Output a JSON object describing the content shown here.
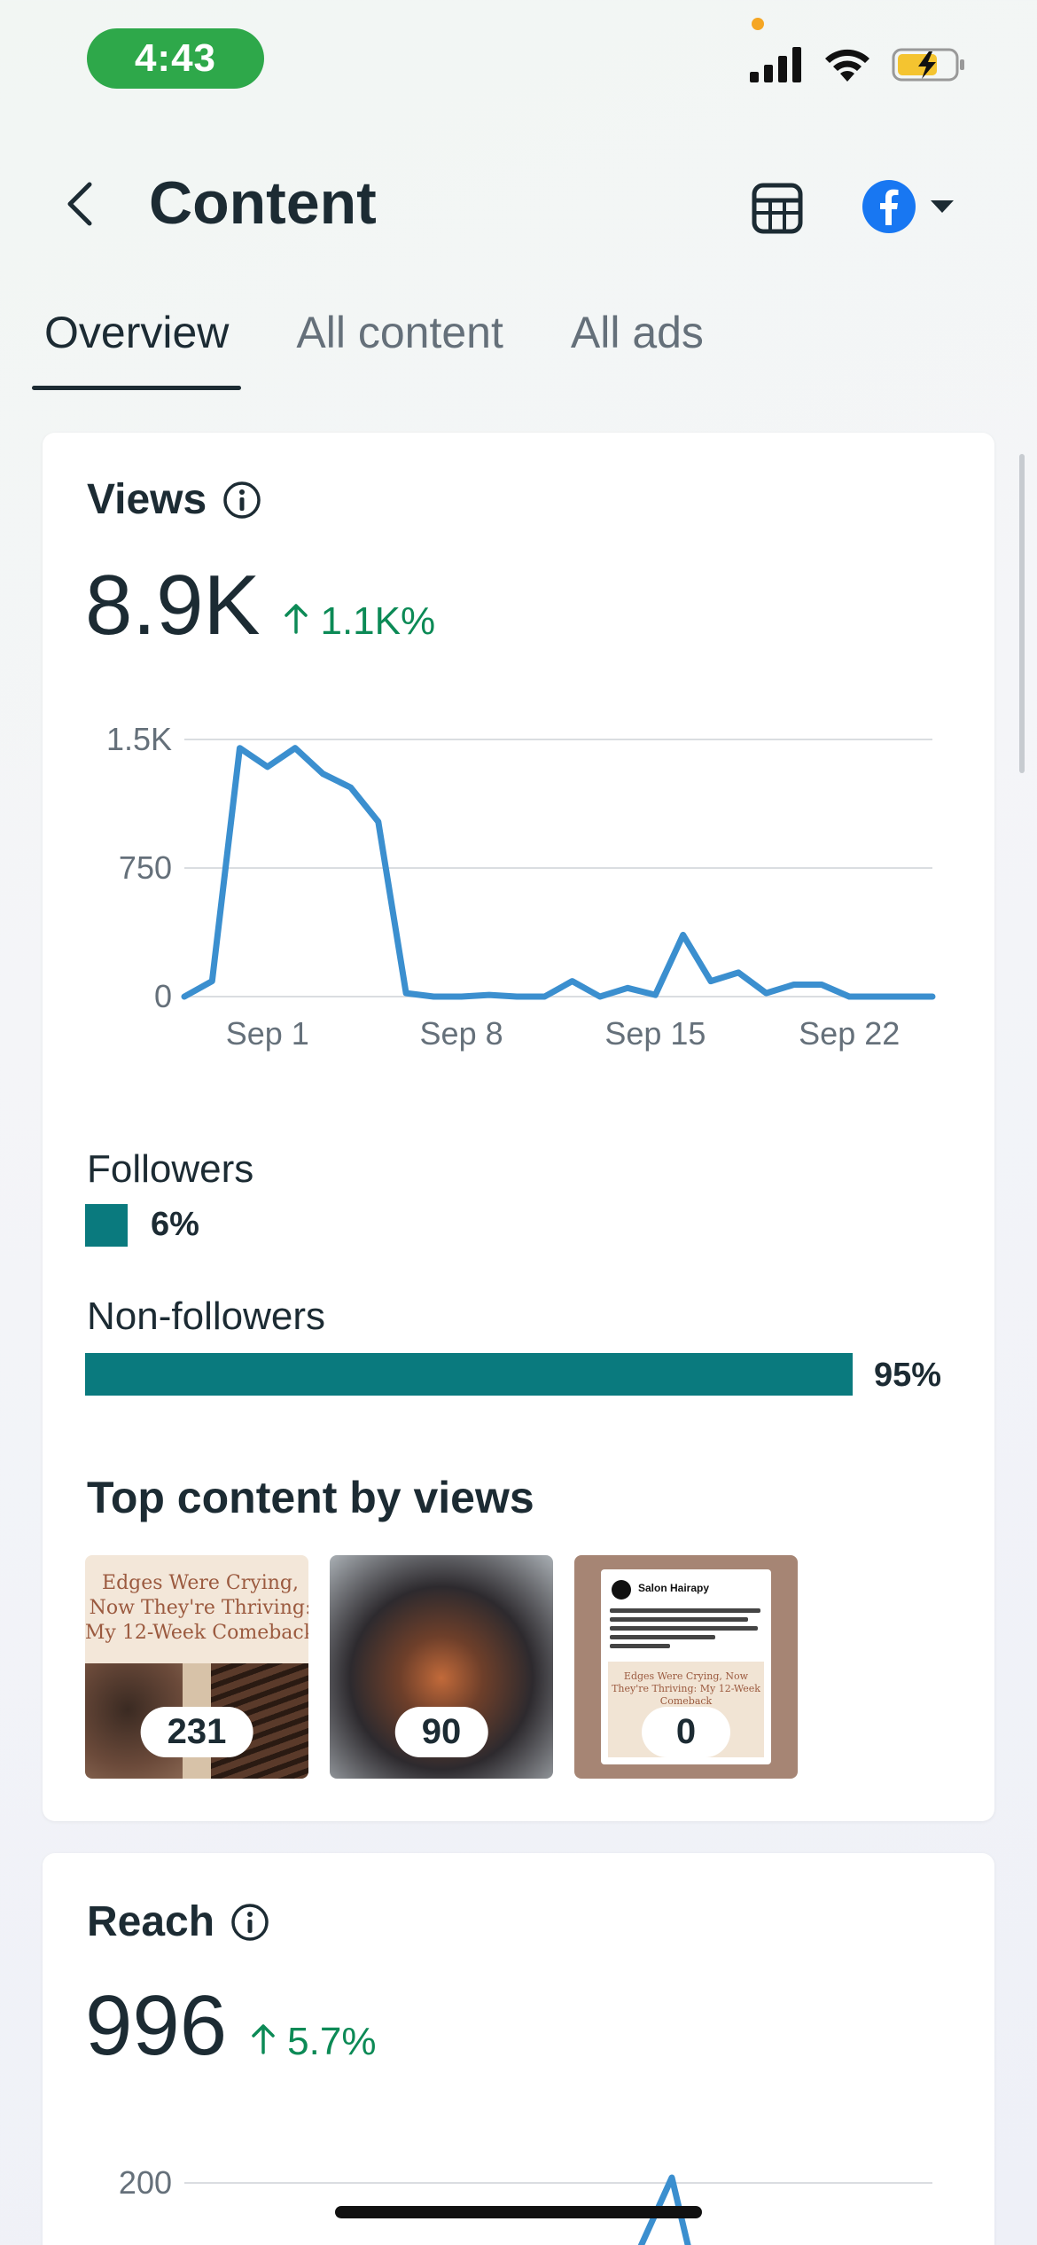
{
  "status_bar": {
    "time": "4:43"
  },
  "header": {
    "title": "Content"
  },
  "tabs": [
    {
      "label": "Overview"
    },
    {
      "label": "All content"
    },
    {
      "label": "All ads"
    }
  ],
  "views": {
    "title": "Views",
    "value": "8.9K",
    "change": "1.1K%",
    "chart_y_ticks": [
      "1.5K",
      "750",
      "0"
    ],
    "chart_x_ticks": [
      "Sep 1",
      "Sep 8",
      "Sep 15",
      "Sep 22"
    ],
    "followers_label": "Followers",
    "followers_pct": "6%",
    "followers_value": 6,
    "nonfollowers_label": "Non-followers",
    "nonfollowers_pct": "95%",
    "nonfollowers_value": 95,
    "top_content_title": "Top content by views",
    "top_content": [
      {
        "count": "231",
        "caption": "Edges Were Crying, Now They're Thriving: My 12-Week Comeback"
      },
      {
        "count": "90"
      },
      {
        "count": "0",
        "account": "Salon Hairapy",
        "caption": "Edges Were Crying, Now They're Thriving: My 12-Week Comeback"
      }
    ]
  },
  "reach": {
    "title": "Reach",
    "value": "996",
    "change": "5.7%",
    "chart_y_ticks": [
      "200"
    ]
  },
  "colors": {
    "accent": "#0a7a7e",
    "line": "#3b8fcf",
    "positive": "#0c8a56"
  },
  "chart_data": {
    "type": "line",
    "title": "Views",
    "x": [
      "Aug 29",
      "Aug 30",
      "Aug 31",
      "Sep 1",
      "Sep 2",
      "Sep 3",
      "Sep 4",
      "Sep 5",
      "Sep 6",
      "Sep 7",
      "Sep 8",
      "Sep 9",
      "Sep 10",
      "Sep 11",
      "Sep 12",
      "Sep 13",
      "Sep 14",
      "Sep 15",
      "Sep 16",
      "Sep 17",
      "Sep 18",
      "Sep 19",
      "Sep 20",
      "Sep 21",
      "Sep 22",
      "Sep 23",
      "Sep 24",
      "Sep 25"
    ],
    "values": [
      0,
      90,
      1450,
      1340,
      1450,
      1300,
      1220,
      1020,
      20,
      0,
      0,
      10,
      0,
      0,
      90,
      0,
      50,
      10,
      360,
      90,
      140,
      20,
      70,
      70,
      0,
      0,
      0,
      0
    ],
    "x_tick_labels": [
      "Sep 1",
      "Sep 8",
      "Sep 15",
      "Sep 22"
    ],
    "y_tick_labels": [
      "1.5K",
      "750",
      "0"
    ],
    "ylim": [
      0,
      1500
    ],
    "grid": true,
    "xlabel": "",
    "ylabel": ""
  }
}
